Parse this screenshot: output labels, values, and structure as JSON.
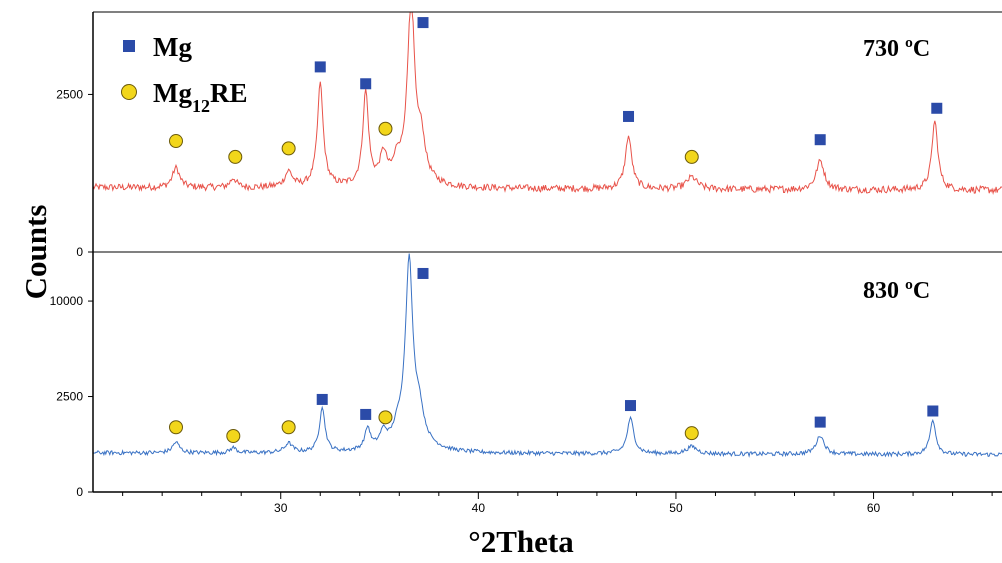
{
  "chart_data": {
    "type": "line",
    "xlabel": "°2Theta",
    "ylabel": "Counts",
    "xlim": [
      20.5,
      66.5
    ],
    "x_ticks": [
      30,
      40,
      50,
      60
    ],
    "legend": {
      "placement": "top-left",
      "entries": [
        {
          "label": "Mg",
          "sub": "",
          "suffix": "",
          "marker": "square",
          "color": "#2b4ba8"
        },
        {
          "label": "Mg",
          "sub": "12",
          "suffix": "RE",
          "marker": "circle",
          "color": "#f2d61b"
        }
      ]
    },
    "panels": [
      {
        "name": "730 ºC",
        "label": "730 ºC",
        "color": "#e8534a",
        "y_scale": "sqrt",
        "ylim": [
          0,
          5800
        ],
        "y_ticks": [
          0,
          2500
        ],
        "baseline": 420,
        "peaks": [
          [
            24.7,
            300,
            0.2
          ],
          [
            27.6,
            130,
            0.18
          ],
          [
            30.4,
            230,
            0.22
          ],
          [
            32.0,
            2500,
            0.14
          ],
          [
            34.3,
            2200,
            0.14
          ],
          [
            35.2,
            520,
            0.2
          ],
          [
            35.9,
            360,
            0.2
          ],
          [
            36.6,
            6300,
            0.17
          ],
          [
            37.1,
            800,
            0.2
          ],
          [
            47.6,
            950,
            0.17
          ],
          [
            50.8,
            170,
            0.3
          ],
          [
            57.3,
            450,
            0.22
          ],
          [
            63.1,
            1350,
            0.15
          ]
        ],
        "markers": [
          {
            "type": "square",
            "x": 32.0,
            "y": 3450
          },
          {
            "type": "square",
            "x": 34.3,
            "y": 2850
          },
          {
            "type": "square",
            "x": 37.2,
            "y": 5300
          },
          {
            "type": "square",
            "x": 47.6,
            "y": 1850
          },
          {
            "type": "square",
            "x": 57.3,
            "y": 1270
          },
          {
            "type": "square",
            "x": 63.2,
            "y": 2080
          },
          {
            "type": "circle",
            "x": 24.7,
            "y": 1240
          },
          {
            "type": "circle",
            "x": 27.7,
            "y": 910
          },
          {
            "type": "circle",
            "x": 30.4,
            "y": 1080
          },
          {
            "type": "circle",
            "x": 35.3,
            "y": 1530
          },
          {
            "type": "circle",
            "x": 50.8,
            "y": 910
          }
        ]
      },
      {
        "name": "830 ºC",
        "label": "830 ºC",
        "color": "#3a72c4",
        "y_scale": "sqrt",
        "ylim": [
          0,
          15800
        ],
        "y_ticks": [
          0,
          2500,
          10000
        ],
        "baseline": 420,
        "peaks": [
          [
            24.7,
            260,
            0.2
          ],
          [
            27.6,
            120,
            0.18
          ],
          [
            30.4,
            230,
            0.22
          ],
          [
            32.1,
            1550,
            0.14
          ],
          [
            34.4,
            650,
            0.15
          ],
          [
            35.2,
            480,
            0.2
          ],
          [
            35.9,
            380,
            0.2
          ],
          [
            36.5,
            15000,
            0.17
          ],
          [
            37.0,
            1200,
            0.2
          ],
          [
            47.7,
            1100,
            0.17
          ],
          [
            50.8,
            170,
            0.3
          ],
          [
            57.3,
            480,
            0.22
          ],
          [
            63.0,
            1050,
            0.15
          ]
        ],
        "markers": [
          {
            "type": "square",
            "x": 32.1,
            "y": 2350
          },
          {
            "type": "square",
            "x": 34.3,
            "y": 1650
          },
          {
            "type": "square",
            "x": 37.2,
            "y": 13100
          },
          {
            "type": "square",
            "x": 47.7,
            "y": 2050
          },
          {
            "type": "square",
            "x": 57.3,
            "y": 1340
          },
          {
            "type": "square",
            "x": 63.0,
            "y": 1800
          },
          {
            "type": "circle",
            "x": 24.7,
            "y": 1150
          },
          {
            "type": "circle",
            "x": 27.6,
            "y": 860
          },
          {
            "type": "circle",
            "x": 30.4,
            "y": 1150
          },
          {
            "type": "circle",
            "x": 35.3,
            "y": 1530
          },
          {
            "type": "circle",
            "x": 50.8,
            "y": 950
          }
        ]
      }
    ]
  }
}
